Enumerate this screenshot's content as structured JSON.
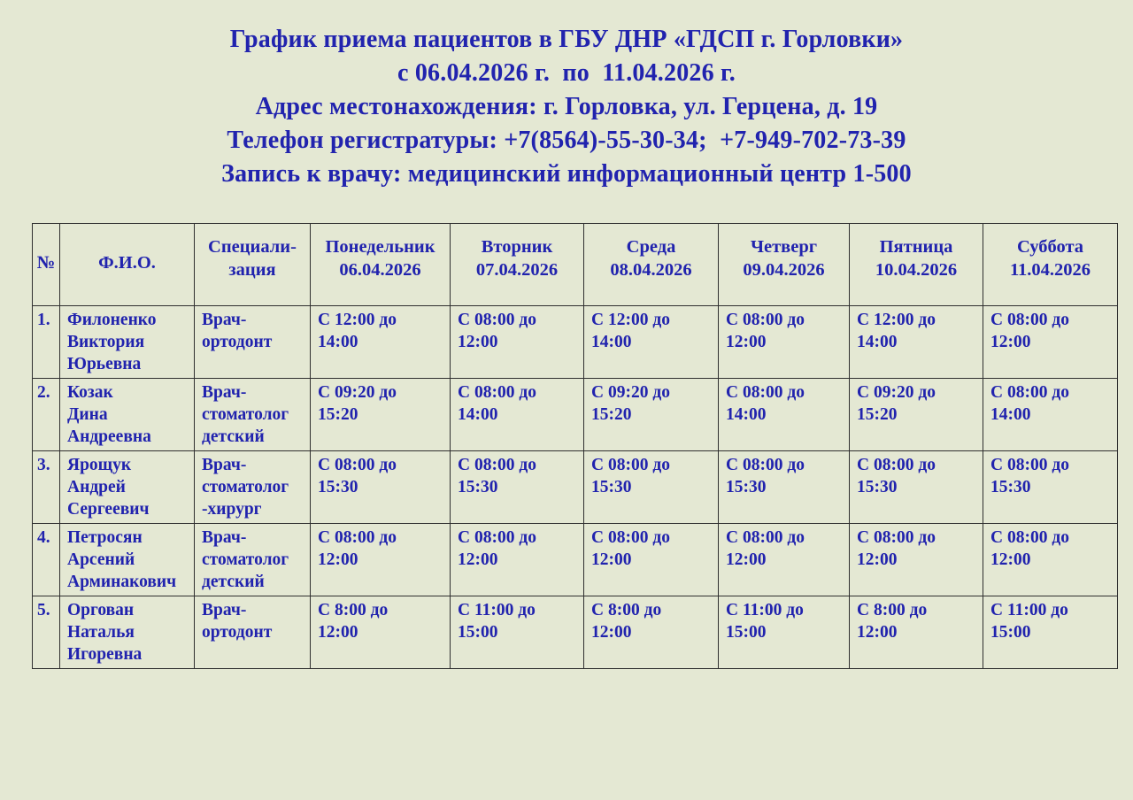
{
  "page": {
    "background_color": "#e4e8d3",
    "text_color": "#2123ae"
  },
  "header": {
    "line1": "График приема пациентов в ГБУ ДНР «ГДСП г. Горловки»",
    "line2": "с 06.04.2026 г.  по  11.04.2026 г.",
    "line3": "Адрес местонахождения: г. Горловка, ул. Герцена, д. 19",
    "line4": "Телефон регистратуры: +7(8564)-55-30-34;  +7-949-702-73-39",
    "line5": "Запись к врачу: медицинский информационный центр 1-500"
  },
  "table": {
    "columns": [
      {
        "line1": "№",
        "line2": ""
      },
      {
        "line1": "Ф.И.О.",
        "line2": ""
      },
      {
        "line1": "Специали-",
        "line2": "зация"
      },
      {
        "line1": "Понедельник",
        "line2": "06.04.2026"
      },
      {
        "line1": "Вторник",
        "line2": "07.04.2026"
      },
      {
        "line1": "Среда",
        "line2": "08.04.2026"
      },
      {
        "line1": "Четверг",
        "line2": "09.04.2026"
      },
      {
        "line1": "Пятница",
        "line2": "10.04.2026"
      },
      {
        "line1": "Суббота",
        "line2": "11.04.2026"
      }
    ],
    "rows": [
      {
        "num": "1.",
        "name": [
          "Филоненко",
          "Виктория",
          "Юрьевна"
        ],
        "spec": [
          "Врач-",
          "ортодонт"
        ],
        "times": [
          [
            "С 12:00 до",
            "14:00"
          ],
          [
            "С 08:00 до",
            "12:00"
          ],
          [
            "С 12:00 до",
            "14:00"
          ],
          [
            "С 08:00 до",
            "12:00"
          ],
          [
            "С 12:00 до",
            "14:00"
          ],
          [
            "С 08:00 до",
            "12:00"
          ]
        ]
      },
      {
        "num": "2.",
        "name": [
          "Козак",
          "Дина",
          "Андреевна"
        ],
        "spec": [
          "Врач-",
          "стоматолог",
          "детский"
        ],
        "times": [
          [
            "С 09:20 до",
            "15:20"
          ],
          [
            "С 08:00 до",
            "14:00"
          ],
          [
            "С 09:20 до",
            "15:20"
          ],
          [
            "С 08:00 до",
            "14:00"
          ],
          [
            "С 09:20 до",
            "15:20"
          ],
          [
            "С 08:00 до",
            "14:00"
          ]
        ]
      },
      {
        "num": "3.",
        "name": [
          "Ярощук",
          "Андрей",
          "Сергеевич"
        ],
        "spec": [
          "Врач-",
          "стоматолог",
          "-хирург"
        ],
        "times": [
          [
            "С 08:00 до",
            "15:30"
          ],
          [
            "С 08:00 до",
            "15:30"
          ],
          [
            "С 08:00 до",
            "15:30"
          ],
          [
            "С 08:00 до",
            "15:30"
          ],
          [
            "С 08:00 до",
            "15:30"
          ],
          [
            "С 08:00 до",
            "15:30"
          ]
        ]
      },
      {
        "num": "4.",
        "name": [
          "Петросян",
          "Арсений",
          "Арминакович"
        ],
        "spec": [
          "Врач-",
          "стоматолог",
          "детский"
        ],
        "times": [
          [
            "С 08:00 до",
            "12:00"
          ],
          [
            "С 08:00 до",
            "12:00"
          ],
          [
            "С 08:00 до",
            "12:00"
          ],
          [
            "С 08:00 до",
            "12:00"
          ],
          [
            "С 08:00 до",
            "12:00"
          ],
          [
            "С 08:00 до",
            "12:00"
          ]
        ]
      },
      {
        "num": "5.",
        "name": [
          "Оргован",
          "Наталья",
          "Игоревна"
        ],
        "spec": [
          "Врач-",
          "ортодонт"
        ],
        "times": [
          [
            "С 8:00 до",
            "12:00"
          ],
          [
            "С 11:00 до",
            "15:00"
          ],
          [
            "С 8:00 до",
            "12:00"
          ],
          [
            "С 11:00 до",
            "15:00"
          ],
          [
            "С 8:00 до",
            "12:00"
          ],
          [
            "С 11:00 до",
            "15:00"
          ]
        ]
      }
    ]
  }
}
